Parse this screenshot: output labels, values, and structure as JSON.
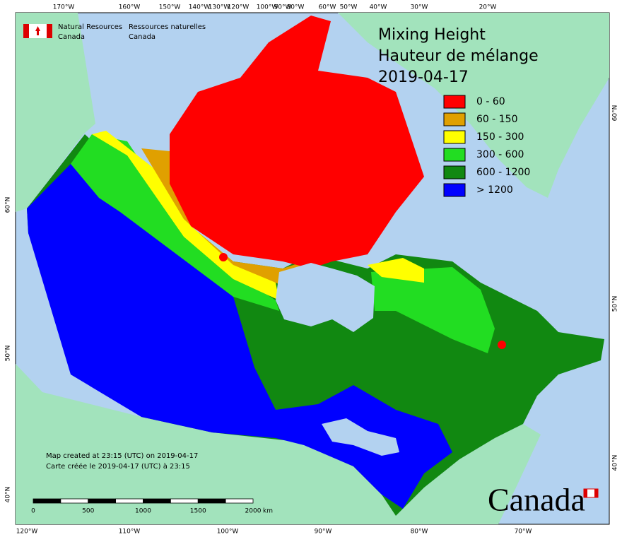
{
  "header": {
    "department_en": [
      "Natural Resources",
      "Canada"
    ],
    "department_fr": [
      "Ressources naturelles",
      "Canada"
    ]
  },
  "title": [
    "Mixing Height",
    "Hauteur de mélange",
    "2019-04-17"
  ],
  "legend": [
    {
      "label": "0 - 60",
      "color": "#ff0000"
    },
    {
      "label": "60 - 150",
      "color": "#e0a000"
    },
    {
      "label": "150 - 300",
      "color": "#ffff00"
    },
    {
      "label": "300 - 600",
      "color": "#22dd22"
    },
    {
      "label": "600 - 1200",
      "color": "#118811"
    },
    {
      "label": "> 1200",
      "color": "#0000ff"
    }
  ],
  "graticule": {
    "top": [
      "170°W",
      "160°W",
      "150°W",
      "140°W",
      "130°W",
      "120°W",
      "100°W",
      "90°W",
      "80°W",
      "60°W",
      "50°W",
      "40°W",
      "30°W",
      "20°W"
    ],
    "bottom": [
      "120°W",
      "110°W",
      "100°W",
      "90°W",
      "80°W",
      "70°W"
    ],
    "left": [
      "60°N",
      "50°N",
      "40°N"
    ],
    "right": [
      "60°N",
      "50°N",
      "40°N"
    ]
  },
  "footer": [
    "Map created at 23:15 (UTC) on 2019-04-17",
    "Carte créée le 2019-04-17 (UTC) à 23:15"
  ],
  "scale_bar": {
    "labels": [
      "0",
      "500",
      "1000",
      "1500",
      "2000"
    ],
    "unit": "km"
  },
  "wordmark": "Canada"
}
